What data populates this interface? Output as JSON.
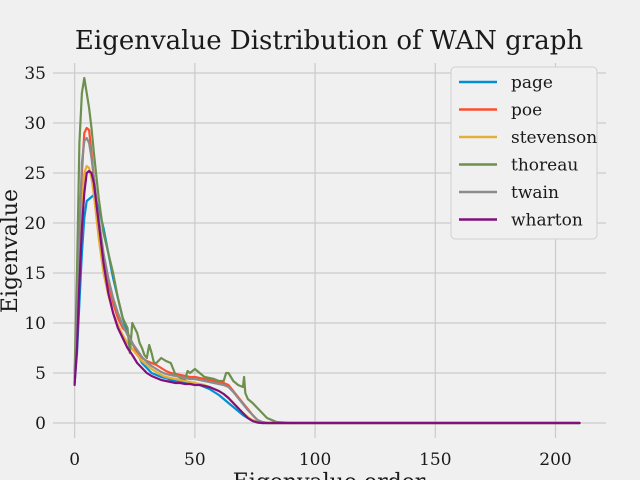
{
  "chart_data": {
    "type": "line",
    "title": "Eigenvalue Distribution of WAN graph",
    "xlabel": "Eigenvalue order",
    "ylabel": "Eigenvalue",
    "xlim": [
      -9,
      221
    ],
    "ylim": [
      -1.5,
      36
    ],
    "xticks": [
      0,
      50,
      100,
      150,
      200
    ],
    "yticks": [
      0,
      5,
      10,
      15,
      20,
      25,
      30,
      35
    ],
    "grid": true,
    "legend_position": "top-right",
    "series": [
      {
        "name": "page",
        "color": "#008fd5",
        "x": [
          0,
          1,
          2,
          3,
          4,
          5,
          6,
          7,
          8,
          10,
          12,
          14,
          16,
          18,
          20,
          22,
          24,
          26,
          28,
          30,
          32,
          34,
          36,
          38,
          40,
          42,
          44,
          46,
          48,
          50,
          52,
          54,
          56,
          58,
          60,
          62,
          64,
          66,
          68,
          70,
          72,
          74,
          76,
          78,
          80,
          84,
          90,
          100,
          150,
          210
        ],
        "values": [
          4.0,
          7.0,
          12.0,
          17.0,
          20.5,
          22.2,
          22.4,
          22.6,
          22.8,
          21.5,
          19.5,
          17.0,
          14.5,
          12.5,
          10.5,
          9.0,
          8.0,
          7.0,
          6.0,
          5.5,
          5.0,
          4.8,
          4.6,
          4.5,
          4.3,
          4.2,
          4.2,
          4.1,
          4.0,
          4.0,
          3.8,
          3.6,
          3.4,
          3.1,
          2.8,
          2.4,
          2.0,
          1.6,
          1.2,
          0.8,
          0.5,
          0.2,
          0.05,
          0.0,
          0.0,
          0.0,
          0.0,
          0.0,
          0.0,
          0.0
        ]
      },
      {
        "name": "poe",
        "color": "#fc4f30",
        "x": [
          0,
          1,
          2,
          3,
          4,
          5,
          6,
          7,
          8,
          10,
          12,
          14,
          16,
          18,
          20,
          22,
          24,
          26,
          28,
          30,
          32,
          34,
          36,
          38,
          40,
          42,
          44,
          46,
          48,
          50,
          52,
          54,
          56,
          58,
          60,
          62,
          64,
          66,
          68,
          70,
          72,
          74,
          76,
          78,
          80,
          84,
          90,
          100,
          150,
          210
        ],
        "values": [
          4.5,
          10.0,
          18.0,
          25.0,
          29.0,
          29.5,
          29.3,
          27.0,
          24.5,
          20.0,
          16.5,
          14.0,
          12.0,
          10.5,
          9.5,
          9.0,
          8.0,
          7.0,
          6.5,
          6.2,
          6.0,
          5.8,
          5.5,
          5.2,
          5.0,
          4.9,
          4.8,
          4.7,
          4.6,
          4.6,
          4.5,
          4.4,
          4.3,
          4.2,
          4.1,
          4.0,
          3.8,
          3.2,
          2.6,
          2.0,
          1.4,
          0.8,
          0.3,
          0.1,
          0.0,
          0.0,
          0.0,
          0.0,
          0.0,
          0.0
        ]
      },
      {
        "name": "stevenson",
        "color": "#e5ae38",
        "x": [
          0,
          1,
          2,
          3,
          4,
          5,
          6,
          7,
          8,
          10,
          12,
          14,
          16,
          18,
          20,
          22,
          24,
          26,
          28,
          30,
          32,
          34,
          36,
          38,
          40,
          42,
          44,
          46,
          48,
          50,
          52,
          54,
          56,
          58,
          60,
          62,
          64,
          66,
          68,
          70,
          72,
          74,
          76,
          78,
          80,
          84,
          90,
          100,
          150,
          210
        ],
        "values": [
          4.2,
          9.0,
          16.0,
          22.0,
          25.0,
          25.7,
          25.5,
          24.5,
          22.8,
          18.5,
          15.0,
          12.8,
          11.0,
          9.8,
          8.8,
          8.0,
          7.4,
          6.8,
          6.2,
          5.8,
          5.4,
          5.1,
          4.8,
          4.6,
          4.5,
          4.4,
          4.3,
          4.2,
          4.1,
          4.0,
          3.9,
          3.8,
          3.6,
          3.4,
          3.2,
          2.9,
          2.5,
          2.0,
          1.5,
          1.0,
          0.6,
          0.3,
          0.1,
          0.0,
          0.0,
          0.0,
          0.0,
          0.0,
          0.0,
          0.0
        ]
      },
      {
        "name": "thoreau",
        "color": "#6d904f",
        "x": [
          0,
          1,
          2,
          3,
          4,
          5,
          6,
          7,
          8,
          10,
          12,
          14,
          16,
          18,
          20,
          22,
          23,
          24,
          25,
          26,
          27,
          28,
          29,
          30,
          31,
          32,
          33,
          34,
          36,
          38,
          40,
          42,
          44,
          46,
          47,
          48,
          50,
          52,
          54,
          56,
          58,
          60,
          62,
          63,
          64,
          66,
          68,
          70,
          70.5,
          71,
          72,
          74,
          76,
          78,
          80,
          84,
          90,
          100,
          150,
          210
        ],
        "values": [
          5.0,
          15.0,
          28.0,
          33.0,
          34.5,
          33.0,
          31.5,
          29.5,
          27.0,
          22.5,
          19.0,
          17.0,
          15.0,
          12.5,
          10.5,
          9.5,
          7.0,
          10.0,
          9.5,
          9.0,
          8.0,
          7.5,
          6.8,
          6.5,
          7.8,
          7.0,
          6.0,
          6.0,
          6.5,
          6.2,
          6.0,
          4.8,
          4.5,
          4.4,
          5.2,
          5.0,
          5.4,
          5.0,
          4.6,
          4.5,
          4.4,
          4.2,
          4.2,
          5.0,
          5.0,
          4.2,
          3.8,
          3.6,
          4.6,
          3.0,
          2.4,
          2.0,
          1.5,
          1.0,
          0.5,
          0.1,
          0.0,
          0.0,
          0.0,
          0.0
        ]
      },
      {
        "name": "twain",
        "color": "#8b8b8b",
        "x": [
          0,
          1,
          2,
          3,
          4,
          5,
          6,
          7,
          8,
          10,
          12,
          14,
          16,
          18,
          20,
          22,
          24,
          26,
          28,
          30,
          32,
          34,
          36,
          38,
          40,
          42,
          44,
          46,
          48,
          50,
          52,
          54,
          56,
          58,
          60,
          62,
          64,
          66,
          68,
          70,
          72,
          74,
          76,
          78,
          80,
          84,
          90,
          100,
          150,
          210
        ],
        "values": [
          4.4,
          10.0,
          19.0,
          26.0,
          28.2,
          28.5,
          28.0,
          26.5,
          24.5,
          20.5,
          17.0,
          14.5,
          12.5,
          11.0,
          9.8,
          8.8,
          8.0,
          7.3,
          6.6,
          6.1,
          5.7,
          5.4,
          5.1,
          4.9,
          4.8,
          4.7,
          4.6,
          4.5,
          4.4,
          4.4,
          4.3,
          4.2,
          4.1,
          4.0,
          3.9,
          3.8,
          3.6,
          3.1,
          2.5,
          1.9,
          1.3,
          0.8,
          0.3,
          0.1,
          0.0,
          0.0,
          0.0,
          0.0,
          0.0,
          0.0
        ]
      },
      {
        "name": "wharton",
        "color": "#810f7c",
        "x": [
          0,
          1,
          2,
          3,
          4,
          5,
          6,
          7,
          8,
          10,
          12,
          14,
          16,
          18,
          20,
          22,
          24,
          26,
          28,
          30,
          32,
          34,
          36,
          38,
          40,
          42,
          44,
          46,
          48,
          50,
          52,
          54,
          56,
          58,
          60,
          62,
          64,
          66,
          68,
          70,
          72,
          74,
          76,
          78,
          80,
          84,
          90,
          100,
          150,
          210
        ],
        "values": [
          3.8,
          7.5,
          14.0,
          19.5,
          23.0,
          25.0,
          25.2,
          25.0,
          24.0,
          20.0,
          16.0,
          13.0,
          11.0,
          9.5,
          8.5,
          7.5,
          6.8,
          6.0,
          5.5,
          5.0,
          4.7,
          4.5,
          4.3,
          4.2,
          4.1,
          4.0,
          4.0,
          3.9,
          3.9,
          3.8,
          3.8,
          3.7,
          3.6,
          3.4,
          3.2,
          2.9,
          2.5,
          2.0,
          1.5,
          1.0,
          0.5,
          0.2,
          0.05,
          0.0,
          0.0,
          0.0,
          0.0,
          0.0,
          0.0,
          0.0
        ]
      }
    ]
  }
}
